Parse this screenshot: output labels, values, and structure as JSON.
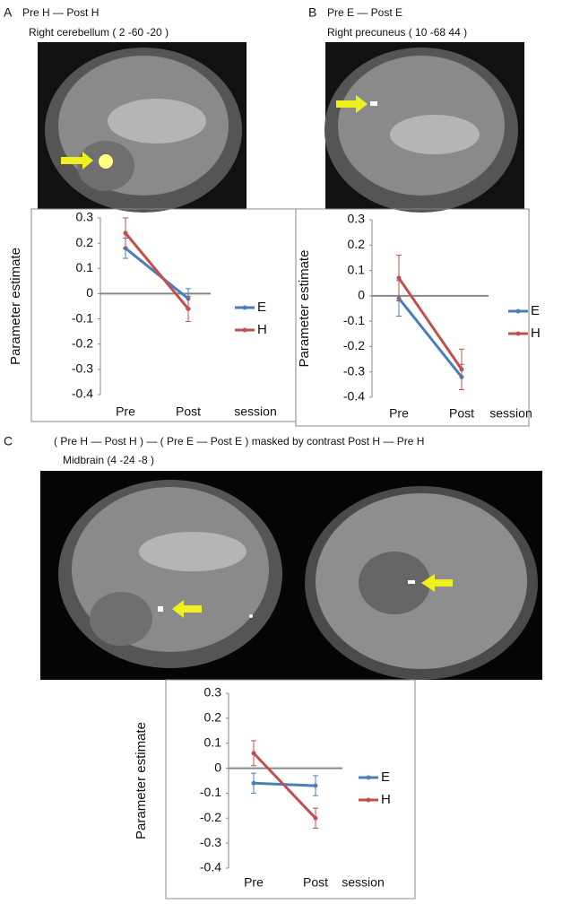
{
  "panels": [
    {
      "label": "A",
      "title": "Pre H — Post H",
      "subtitle": "Right cerebellum ( 2 -60 -20 )"
    },
    {
      "label": "B",
      "title": "Pre E — Post E",
      "subtitle": "Right precuneus ( 10 -68 44 )"
    },
    {
      "label": "C",
      "title": "( Pre H — Post H ) — ( Pre E — Post E )  masked by contrast Post H — Pre H",
      "subtitle": "Midbrain (4 -24 -8 )"
    }
  ],
  "chart_data": [
    {
      "type": "line",
      "y_label": "Parameter estimate",
      "x_label": "session",
      "categories": [
        "Pre",
        "Post"
      ],
      "series": [
        {
          "name": "E",
          "color": "#4a7ebb",
          "values": [
            0.18,
            -0.02
          ],
          "errors": [
            0.04,
            0.04
          ]
        },
        {
          "name": "H",
          "color": "#c0504d",
          "values": [
            0.24,
            -0.06
          ],
          "errors": [
            0.06,
            0.05
          ]
        }
      ],
      "ylim": [
        -0.4,
        0.3
      ],
      "yticks": [
        -0.4,
        -0.3,
        -0.2,
        -0.1,
        0,
        0.1,
        0.2,
        0.3
      ]
    },
    {
      "type": "line",
      "y_label": "Parameter estimate",
      "x_label": "session",
      "categories": [
        "Pre",
        "Post"
      ],
      "series": [
        {
          "name": "E",
          "color": "#4a7ebb",
          "values": [
            -0.01,
            -0.32
          ],
          "errors": [
            0.07,
            0.05
          ]
        },
        {
          "name": "H",
          "color": "#c0504d",
          "values": [
            0.07,
            -0.29
          ],
          "errors": [
            0.09,
            0.08
          ]
        }
      ],
      "ylim": [
        -0.4,
        0.3
      ],
      "yticks": [
        -0.4,
        -0.3,
        -0.2,
        -0.1,
        0,
        0.1,
        0.2,
        0.3
      ]
    },
    {
      "type": "line",
      "y_label": "Parameter estimate",
      "x_label": "session",
      "categories": [
        "Pre",
        "Post"
      ],
      "series": [
        {
          "name": "E",
          "color": "#4a7ebb",
          "values": [
            -0.06,
            -0.07
          ],
          "errors": [
            0.04,
            0.04
          ]
        },
        {
          "name": "H",
          "color": "#c0504d",
          "values": [
            0.06,
            -0.2
          ],
          "errors": [
            0.05,
            0.04
          ]
        }
      ],
      "ylim": [
        -0.4,
        0.3
      ],
      "yticks": [
        -0.4,
        -0.3,
        -0.2,
        -0.1,
        0,
        0.1,
        0.2,
        0.3
      ]
    }
  ]
}
